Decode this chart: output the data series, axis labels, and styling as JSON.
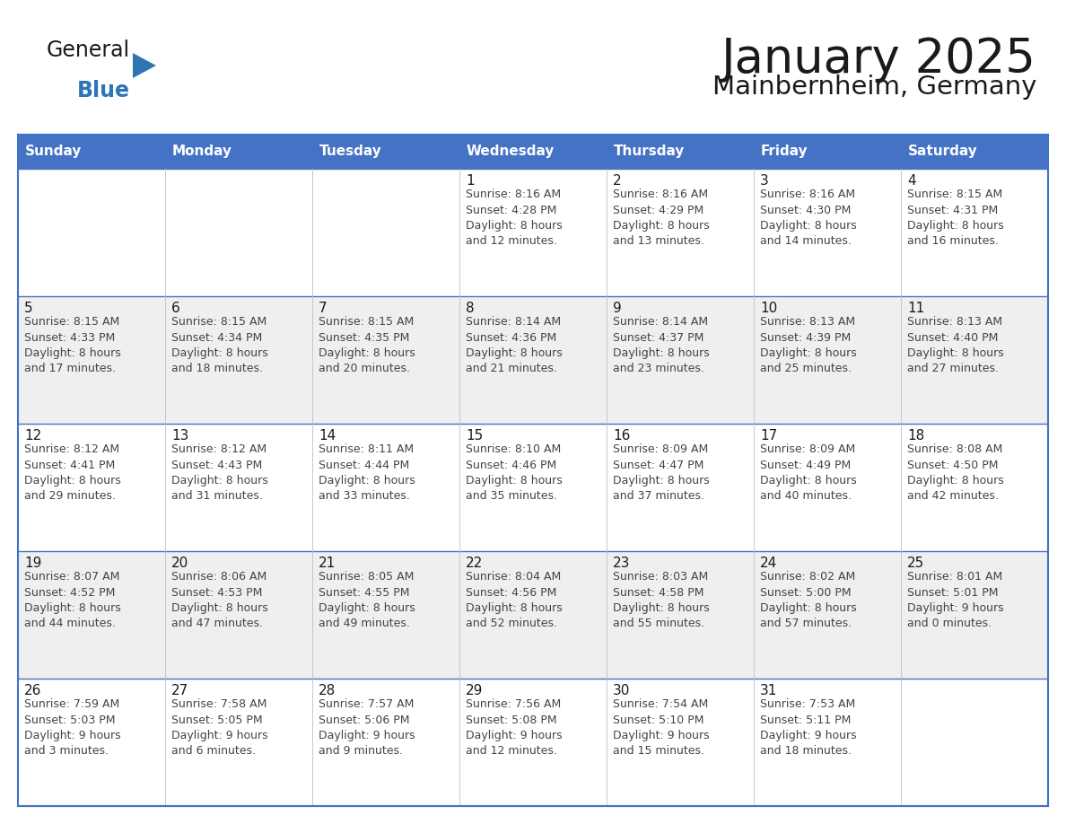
{
  "title": "January 2025",
  "subtitle": "Mainbernheim, Germany",
  "header_bg": "#4472C4",
  "header_text_color": "#FFFFFF",
  "border_color": "#4472C4",
  "row_sep_color": "#4472C4",
  "col_sep_color": "#C0C0C0",
  "day_names": [
    "Sunday",
    "Monday",
    "Tuesday",
    "Wednesday",
    "Thursday",
    "Friday",
    "Saturday"
  ],
  "title_color": "#1a1a1a",
  "subtitle_color": "#1a1a1a",
  "day_number_color": "#1a1a1a",
  "cell_text_color": "#444444",
  "logo_general_color": "#1a1a1a",
  "logo_blue_color": "#2E75B6",
  "row_bg_colors": [
    "#FFFFFF",
    "#F0F0F0",
    "#FFFFFF",
    "#F0F0F0",
    "#FFFFFF"
  ],
  "calendar": [
    [
      {
        "day": null,
        "info": null
      },
      {
        "day": null,
        "info": null
      },
      {
        "day": null,
        "info": null
      },
      {
        "day": 1,
        "info": "Sunrise: 8:16 AM\nSunset: 4:28 PM\nDaylight: 8 hours\nand 12 minutes."
      },
      {
        "day": 2,
        "info": "Sunrise: 8:16 AM\nSunset: 4:29 PM\nDaylight: 8 hours\nand 13 minutes."
      },
      {
        "day": 3,
        "info": "Sunrise: 8:16 AM\nSunset: 4:30 PM\nDaylight: 8 hours\nand 14 minutes."
      },
      {
        "day": 4,
        "info": "Sunrise: 8:15 AM\nSunset: 4:31 PM\nDaylight: 8 hours\nand 16 minutes."
      }
    ],
    [
      {
        "day": 5,
        "info": "Sunrise: 8:15 AM\nSunset: 4:33 PM\nDaylight: 8 hours\nand 17 minutes."
      },
      {
        "day": 6,
        "info": "Sunrise: 8:15 AM\nSunset: 4:34 PM\nDaylight: 8 hours\nand 18 minutes."
      },
      {
        "day": 7,
        "info": "Sunrise: 8:15 AM\nSunset: 4:35 PM\nDaylight: 8 hours\nand 20 minutes."
      },
      {
        "day": 8,
        "info": "Sunrise: 8:14 AM\nSunset: 4:36 PM\nDaylight: 8 hours\nand 21 minutes."
      },
      {
        "day": 9,
        "info": "Sunrise: 8:14 AM\nSunset: 4:37 PM\nDaylight: 8 hours\nand 23 minutes."
      },
      {
        "day": 10,
        "info": "Sunrise: 8:13 AM\nSunset: 4:39 PM\nDaylight: 8 hours\nand 25 minutes."
      },
      {
        "day": 11,
        "info": "Sunrise: 8:13 AM\nSunset: 4:40 PM\nDaylight: 8 hours\nand 27 minutes."
      }
    ],
    [
      {
        "day": 12,
        "info": "Sunrise: 8:12 AM\nSunset: 4:41 PM\nDaylight: 8 hours\nand 29 minutes."
      },
      {
        "day": 13,
        "info": "Sunrise: 8:12 AM\nSunset: 4:43 PM\nDaylight: 8 hours\nand 31 minutes."
      },
      {
        "day": 14,
        "info": "Sunrise: 8:11 AM\nSunset: 4:44 PM\nDaylight: 8 hours\nand 33 minutes."
      },
      {
        "day": 15,
        "info": "Sunrise: 8:10 AM\nSunset: 4:46 PM\nDaylight: 8 hours\nand 35 minutes."
      },
      {
        "day": 16,
        "info": "Sunrise: 8:09 AM\nSunset: 4:47 PM\nDaylight: 8 hours\nand 37 minutes."
      },
      {
        "day": 17,
        "info": "Sunrise: 8:09 AM\nSunset: 4:49 PM\nDaylight: 8 hours\nand 40 minutes."
      },
      {
        "day": 18,
        "info": "Sunrise: 8:08 AM\nSunset: 4:50 PM\nDaylight: 8 hours\nand 42 minutes."
      }
    ],
    [
      {
        "day": 19,
        "info": "Sunrise: 8:07 AM\nSunset: 4:52 PM\nDaylight: 8 hours\nand 44 minutes."
      },
      {
        "day": 20,
        "info": "Sunrise: 8:06 AM\nSunset: 4:53 PM\nDaylight: 8 hours\nand 47 minutes."
      },
      {
        "day": 21,
        "info": "Sunrise: 8:05 AM\nSunset: 4:55 PM\nDaylight: 8 hours\nand 49 minutes."
      },
      {
        "day": 22,
        "info": "Sunrise: 8:04 AM\nSunset: 4:56 PM\nDaylight: 8 hours\nand 52 minutes."
      },
      {
        "day": 23,
        "info": "Sunrise: 8:03 AM\nSunset: 4:58 PM\nDaylight: 8 hours\nand 55 minutes."
      },
      {
        "day": 24,
        "info": "Sunrise: 8:02 AM\nSunset: 5:00 PM\nDaylight: 8 hours\nand 57 minutes."
      },
      {
        "day": 25,
        "info": "Sunrise: 8:01 AM\nSunset: 5:01 PM\nDaylight: 9 hours\nand 0 minutes."
      }
    ],
    [
      {
        "day": 26,
        "info": "Sunrise: 7:59 AM\nSunset: 5:03 PM\nDaylight: 9 hours\nand 3 minutes."
      },
      {
        "day": 27,
        "info": "Sunrise: 7:58 AM\nSunset: 5:05 PM\nDaylight: 9 hours\nand 6 minutes."
      },
      {
        "day": 28,
        "info": "Sunrise: 7:57 AM\nSunset: 5:06 PM\nDaylight: 9 hours\nand 9 minutes."
      },
      {
        "day": 29,
        "info": "Sunrise: 7:56 AM\nSunset: 5:08 PM\nDaylight: 9 hours\nand 12 minutes."
      },
      {
        "day": 30,
        "info": "Sunrise: 7:54 AM\nSunset: 5:10 PM\nDaylight: 9 hours\nand 15 minutes."
      },
      {
        "day": 31,
        "info": "Sunrise: 7:53 AM\nSunset: 5:11 PM\nDaylight: 9 hours\nand 18 minutes."
      },
      {
        "day": null,
        "info": null
      }
    ]
  ]
}
